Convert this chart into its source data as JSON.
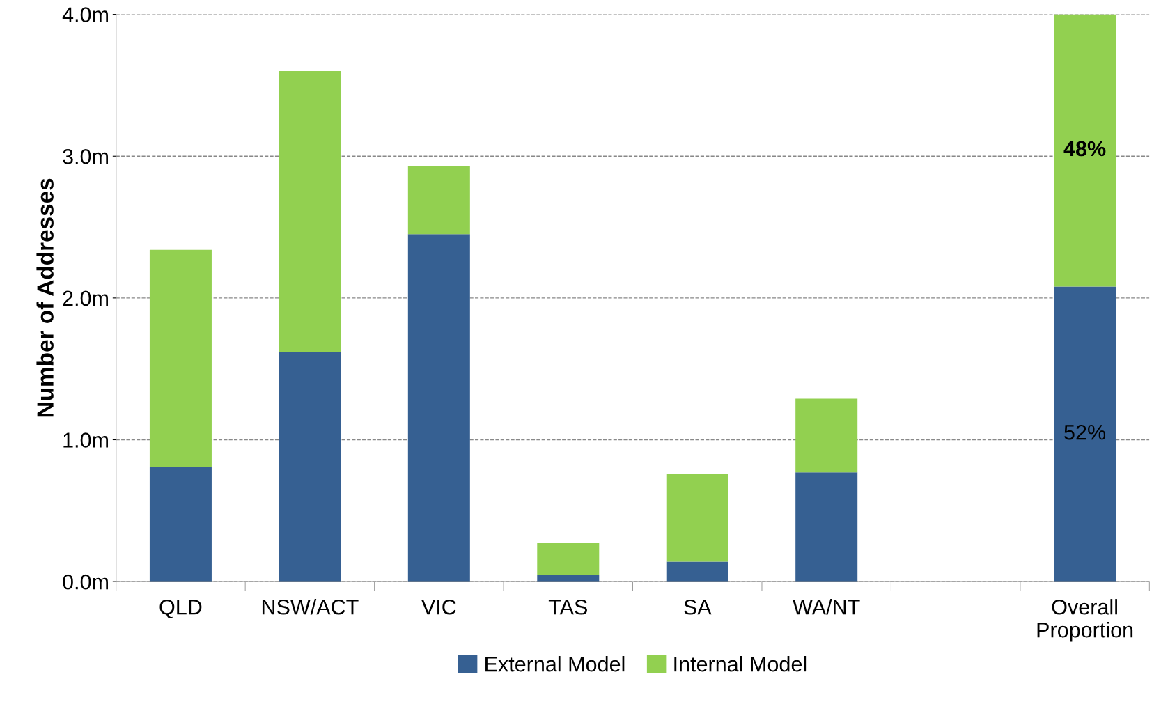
{
  "chart_data": {
    "type": "bar",
    "stacked": true,
    "ylabel": "Number of Addresses",
    "categories": [
      "QLD",
      "NSW/ACT",
      "VIC",
      "TAS",
      "SA",
      "WA/NT",
      null,
      "Overall\nProportion"
    ],
    "series": [
      {
        "name": "External Model",
        "color": "#366092",
        "values": [
          0.81,
          1.62,
          2.45,
          0.045,
          0.14,
          0.77,
          null,
          2.08
        ]
      },
      {
        "name": "Internal Model",
        "color": "#92d050",
        "values": [
          1.53,
          1.98,
          0.48,
          0.23,
          0.62,
          0.52,
          null,
          1.92
        ]
      }
    ],
    "annotations": [
      "52%",
      "48%"
    ],
    "ylim": [
      0,
      4.0
    ],
    "yticks": [
      {
        "value": 0,
        "label": "0.0m"
      },
      {
        "value": 1.0,
        "label": "1.0m"
      },
      {
        "value": 2.0,
        "label": "2.0m"
      },
      {
        "value": 3.0,
        "label": "3.0m"
      },
      {
        "value": 4.0,
        "label": "4.0m"
      }
    ],
    "grid": "y",
    "legend": "bottom"
  }
}
